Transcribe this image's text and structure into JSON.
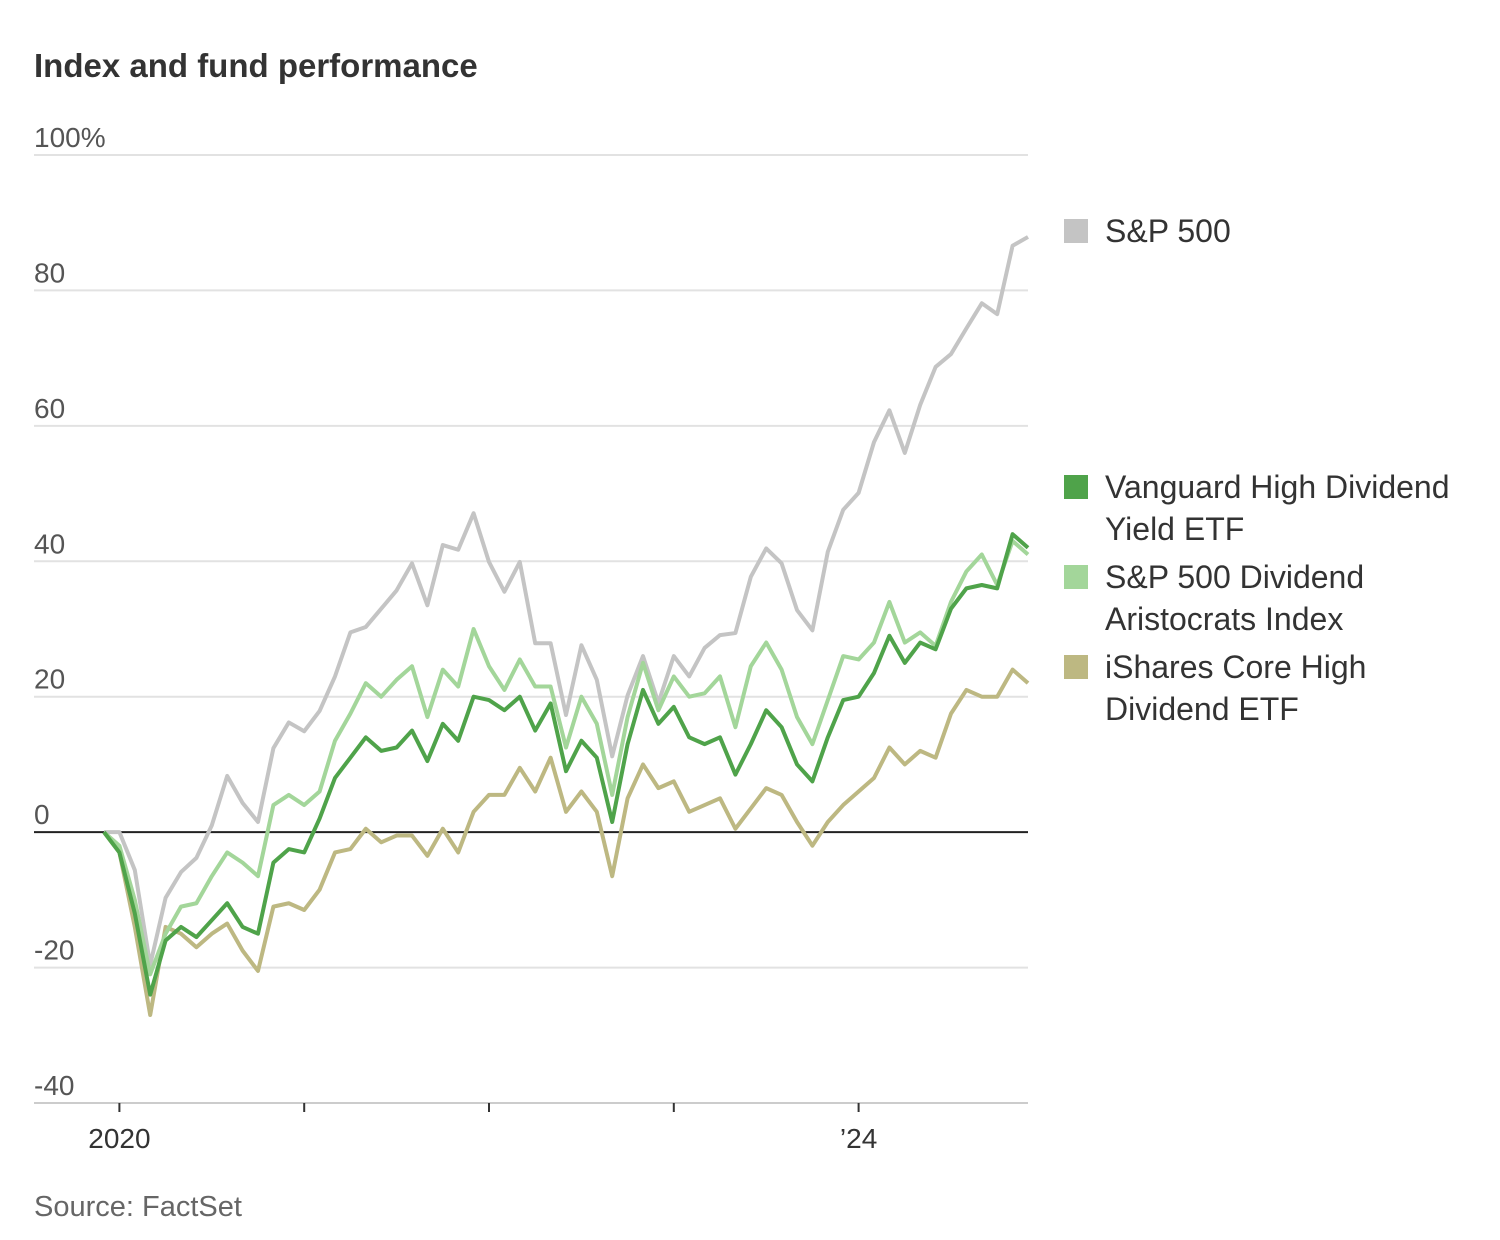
{
  "chart_data": {
    "type": "line",
    "title": "Index and fund performance",
    "source": "Source: FactSet",
    "categories": [
      null,
      "2020",
      null,
      null,
      null,
      null,
      null,
      null,
      null,
      null,
      null,
      null,
      null,
      null,
      null,
      null,
      null,
      null,
      null,
      null,
      null,
      null,
      null,
      null,
      null,
      null,
      null,
      null,
      null,
      null,
      null,
      null,
      null,
      null,
      null,
      null,
      null,
      null,
      null,
      null,
      null,
      null,
      null,
      null,
      null,
      null,
      null,
      null,
      null,
      "’24",
      null,
      null,
      null,
      null,
      null,
      null,
      null,
      null,
      null,
      null,
      null
    ],
    "ylim": [
      -40,
      100
    ],
    "yticks": [
      -40,
      -20,
      0,
      20,
      40,
      60,
      80,
      {
        "value": 100,
        "label": "100%"
      }
    ],
    "grid": true,
    "series": [
      {
        "name": "S&P 500",
        "color": "#c4c4c4",
        "values": [
          0,
          0,
          -5.6,
          -19.6,
          -9.7,
          -5.9,
          -3.8,
          1,
          8.3,
          4.3,
          1.5,
          12.4,
          16.2,
          14.9,
          17.9,
          23,
          29.5,
          30.3,
          33,
          35.7,
          39.7,
          33.5,
          42.4,
          41.7,
          47.1,
          39.9,
          35.5,
          39.9,
          27.9,
          27.9,
          17.3,
          27.6,
          22.5,
          11.2,
          20.2,
          26,
          19.1,
          26,
          23,
          27.2,
          29.1,
          29.4,
          37.7,
          41.9,
          39.7,
          32.8,
          29.8,
          41.4,
          47.6,
          50.1,
          57.6,
          62.3,
          56,
          63.1,
          68.7,
          70.6,
          74.4,
          78.1,
          76.5,
          86.6,
          87.9
        ]
      },
      {
        "name": "Vanguard High Dividend Yield ETF",
        "color": "#4fa34a",
        "values": [
          0,
          -3,
          -12,
          -24,
          -16,
          -14,
          -15.5,
          -13,
          -10.5,
          -14,
          -15,
          -4.5,
          -2.5,
          -3,
          2,
          8,
          11,
          14,
          12,
          12.5,
          15,
          10.5,
          16,
          13.5,
          20,
          19.5,
          18,
          20,
          15,
          19,
          9,
          13.5,
          11,
          1.5,
          13,
          21,
          16,
          18.5,
          14,
          13,
          14,
          8.5,
          13,
          18,
          15.5,
          10,
          7.5,
          14,
          19.5,
          20,
          23.5,
          29,
          25,
          28,
          27,
          33,
          36,
          36.5,
          36,
          44,
          42
        ]
      },
      {
        "name": "S&P 500 Dividend Aristocrats Index",
        "color": "#a3d69a",
        "values": [
          0,
          -2,
          -10,
          -21,
          -15,
          -11,
          -10.5,
          -6.5,
          -3,
          -4.5,
          -6.5,
          4,
          5.5,
          4,
          6,
          13.5,
          17.5,
          22,
          20,
          22.5,
          24.5,
          17,
          24,
          21.5,
          30,
          24.5,
          21,
          25.5,
          21.5,
          21.5,
          12.5,
          20,
          16,
          5.5,
          17,
          25,
          18,
          23,
          20,
          20.5,
          23,
          15.5,
          24.5,
          28,
          24,
          17,
          13,
          19.5,
          26,
          25.5,
          28,
          34,
          28,
          29.5,
          27.5,
          34,
          38.5,
          41,
          36.5,
          43,
          41
        ]
      },
      {
        "name": "iShares Core High Dividend ETF",
        "color": "#bdb882",
        "values": [
          0,
          -3,
          -14,
          -27,
          -14,
          -15,
          -17,
          -15,
          -13.5,
          -17.5,
          -20.5,
          -11,
          -10.5,
          -11.5,
          -8.5,
          -3,
          -2.5,
          0.5,
          -1.5,
          -0.5,
          -0.5,
          -3.5,
          0.5,
          -3,
          3,
          5.5,
          5.5,
          9.5,
          6,
          11,
          3,
          6,
          3,
          -6.5,
          5,
          10,
          6.5,
          7.5,
          3,
          4,
          5,
          0.5,
          3.5,
          6.5,
          5.5,
          1.5,
          -2,
          1.5,
          4,
          6,
          8,
          12.5,
          10,
          12,
          11,
          17.5,
          21,
          20,
          20,
          24,
          22
        ]
      }
    ]
  }
}
